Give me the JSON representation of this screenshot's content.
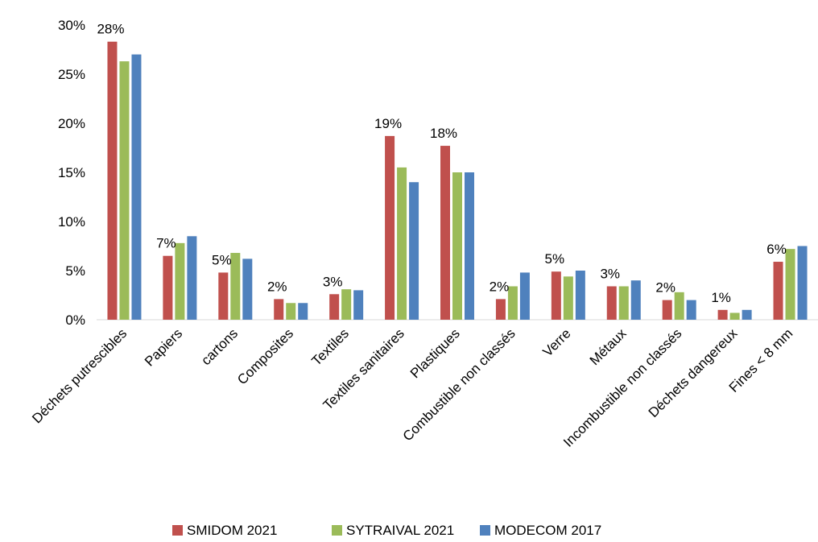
{
  "chart_data": {
    "type": "bar",
    "categories": [
      "Déchets putrescibles",
      "Papiers",
      "cartons",
      "Composites",
      "Textiles",
      "Textiles sanitaires",
      "Plastiques",
      "Combustible non classés",
      "Verre",
      "Métaux",
      "Incombustible non classés",
      "Déchets dangereux",
      "Fines < 8 mm"
    ],
    "series": [
      {
        "name": "SMIDOM 2021",
        "color": "#C0504D",
        "values": [
          28.3,
          6.5,
          4.8,
          2.1,
          2.6,
          18.7,
          17.7,
          2.1,
          4.9,
          3.4,
          2.0,
          1.0,
          5.9
        ]
      },
      {
        "name": "SYTRAIVAL 2021",
        "color": "#9BBB59",
        "values": [
          26.3,
          7.8,
          6.8,
          1.7,
          3.1,
          15.5,
          15.0,
          3.4,
          4.4,
          3.4,
          2.8,
          0.7,
          7.2
        ]
      },
      {
        "name": "MODECOM 2017",
        "color": "#4F81BD",
        "values": [
          27.0,
          8.5,
          6.2,
          1.7,
          3.0,
          14.0,
          15.0,
          4.8,
          5.0,
          4.0,
          2.0,
          1.0,
          7.5
        ]
      }
    ],
    "data_labels": [
      "28%",
      "7%",
      "5%",
      "2%",
      "3%",
      "19%",
      "18%",
      "2%",
      "5%",
      "3%",
      "2%",
      "1%",
      "6%"
    ],
    "y_ticks": [
      "0%",
      "5%",
      "10%",
      "15%",
      "20%",
      "25%",
      "30%"
    ],
    "y_tick_values": [
      0,
      5,
      10,
      15,
      20,
      25,
      30
    ],
    "ylim": [
      0,
      30
    ],
    "grid": false,
    "legend_position": "bottom",
    "title": "",
    "xlabel": "",
    "ylabel": ""
  }
}
